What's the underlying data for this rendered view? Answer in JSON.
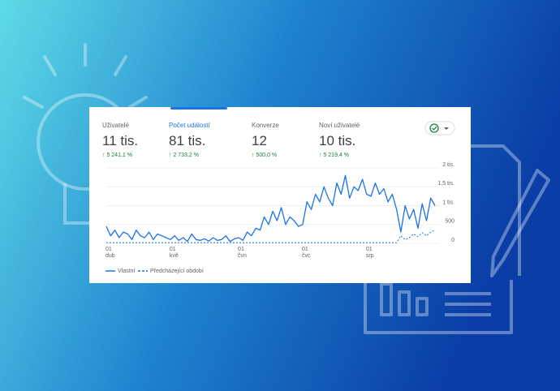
{
  "metrics": [
    {
      "label": "Uživatelé",
      "value": "11 tis.",
      "change": "↑ 5 241,1 %"
    },
    {
      "label": "Počet událostí",
      "value": "81 tis.",
      "change": "↑ 2 733,2 %"
    },
    {
      "label": "Konverze",
      "value": "12",
      "change": "↑ 500,0 %"
    },
    {
      "label": "Noví uživatelé",
      "value": "10 tis.",
      "change": "↑ 5 219,4 %"
    }
  ],
  "chart_data": {
    "type": "line",
    "categories": [
      "01\ndub",
      null,
      null,
      null,
      null,
      null,
      null,
      null,
      null,
      null,
      null,
      null,
      null,
      null,
      null,
      "01\nkvě",
      null,
      null,
      null,
      null,
      null,
      null,
      null,
      null,
      null,
      null,
      null,
      null,
      null,
      null,
      null,
      "01\nčvn",
      null,
      null,
      null,
      null,
      null,
      null,
      null,
      null,
      null,
      null,
      null,
      null,
      null,
      null,
      "01\nčvc",
      null,
      null,
      null,
      null,
      null,
      null,
      null,
      null,
      null,
      null,
      null,
      null,
      null,
      null,
      "01\nsrp",
      null,
      null,
      null,
      null,
      null,
      null,
      null,
      null,
      null,
      null,
      null,
      null,
      null,
      null,
      null,
      null
    ],
    "series": [
      {
        "name": "Vlastní",
        "color": "#1a73e8",
        "dashed": false,
        "values": [
          450,
          200,
          350,
          150,
          300,
          250,
          100,
          350,
          200,
          150,
          300,
          100,
          250,
          200,
          150,
          100,
          200,
          80,
          150,
          50,
          250,
          100,
          80,
          120,
          60,
          150,
          80,
          100,
          200,
          50,
          120,
          150,
          80,
          300,
          200,
          400,
          350,
          700,
          500,
          850,
          600,
          950,
          500,
          700,
          600,
          450,
          500,
          1100,
          900,
          1300,
          1100,
          1500,
          1200,
          1000,
          1600,
          1300,
          1800,
          1200,
          1500,
          1400,
          1700,
          1300,
          1250,
          1600,
          1300,
          1450,
          1100,
          1300,
          900,
          300,
          1000,
          650,
          900,
          400,
          1050,
          600,
          1200,
          1000
        ]
      },
      {
        "name": "Předcházející období",
        "color": "#1a73e8",
        "dashed": true,
        "values": [
          20,
          20,
          20,
          20,
          20,
          20,
          20,
          20,
          20,
          20,
          20,
          20,
          20,
          20,
          20,
          20,
          20,
          20,
          20,
          20,
          20,
          20,
          20,
          20,
          20,
          20,
          20,
          20,
          20,
          20,
          20,
          20,
          20,
          20,
          20,
          20,
          20,
          20,
          20,
          20,
          20,
          20,
          20,
          20,
          20,
          20,
          20,
          20,
          20,
          20,
          20,
          20,
          20,
          20,
          20,
          20,
          20,
          20,
          20,
          20,
          20,
          20,
          20,
          20,
          20,
          20,
          20,
          20,
          20,
          200,
          100,
          150,
          250,
          180,
          280,
          200,
          300,
          350
        ]
      }
    ],
    "ylim": [
      0,
      2000
    ],
    "yticks": [
      {
        "value": 2000,
        "label": "2 tis."
      },
      {
        "value": 1500,
        "label": "1,5 tis."
      },
      {
        "value": 1000,
        "label": "1 tis."
      },
      500,
      0
    ],
    "grid": true
  }
}
